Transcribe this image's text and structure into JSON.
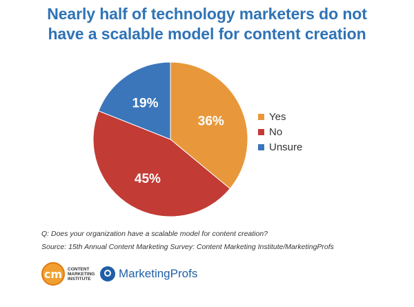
{
  "title_lines": [
    "Nearly half of technology marketers do not",
    "have a scalable model for content creation"
  ],
  "chart_data": {
    "type": "pie",
    "title": "Nearly half of technology marketers do not have a scalable model for content creation",
    "categories": [
      "Yes",
      "No",
      "Unsure"
    ],
    "values": [
      36,
      45,
      19
    ],
    "labels": [
      "36%",
      "45%",
      "19%"
    ],
    "colors": [
      "#e8983a",
      "#c23b35",
      "#3b76bb"
    ],
    "legend_placement": "right",
    "start": "12 o'clock",
    "direction": "clockwise"
  },
  "legend": [
    {
      "label": "Yes",
      "color": "#e8983a"
    },
    {
      "label": "No",
      "color": "#c23b35"
    },
    {
      "label": "Unsure",
      "color": "#3b76bb"
    }
  ],
  "notes": {
    "question": "Q: Does your organization have a scalable model for content creation?",
    "source": "Source: 15th Annual Content Marketing Survey: Content Marketing Institute/MarketingProfs"
  },
  "logos": {
    "cmi_mark": "cm",
    "cmi_text": "Content Marketing Institute",
    "mp_text": "MarketingProfs"
  }
}
